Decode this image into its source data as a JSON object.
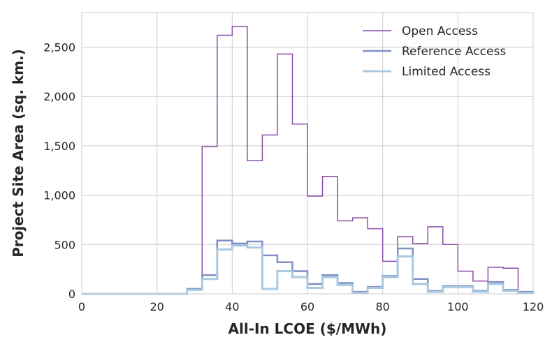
{
  "chart_data": {
    "type": "step",
    "xlabel": "All-In LCOE ($/MWh)",
    "ylabel": "Project Site Area (sq. km.)",
    "xlim": [
      0,
      120
    ],
    "ylim": [
      0,
      2850
    ],
    "xticks": [
      0,
      20,
      40,
      60,
      80,
      100,
      120
    ],
    "xtick_labels": [
      "0",
      "20",
      "40",
      "60",
      "80",
      "100",
      "120"
    ],
    "yticks": [
      0,
      500,
      1000,
      1500,
      2000,
      2500
    ],
    "ytick_labels": [
      "0",
      "500",
      "1,000",
      "1,500",
      "2,000",
      "2,500"
    ],
    "grid": true,
    "legend_position": "top-right",
    "bin_edges": [
      0,
      4,
      8,
      12,
      16,
      20,
      24,
      28,
      32,
      36,
      40,
      44,
      48,
      52,
      56,
      60,
      64,
      68,
      72,
      76,
      80,
      84,
      88,
      92,
      96,
      100,
      104,
      108,
      112,
      116,
      120
    ],
    "series": [
      {
        "name": "Open Access",
        "color": "#8b4fa8",
        "width": 1.5,
        "values": [
          0,
          0,
          0,
          0,
          0,
          0,
          0,
          40,
          1490,
          2620,
          2710,
          1350,
          1610,
          2430,
          1720,
          990,
          1190,
          740,
          770,
          660,
          330,
          580,
          510,
          680,
          500,
          230,
          130,
          270,
          260,
          10
        ]
      },
      {
        "name": "Reference Access",
        "color": "#7f8fc8",
        "width": 2.5,
        "values": [
          0,
          0,
          0,
          0,
          0,
          0,
          0,
          50,
          190,
          540,
          510,
          530,
          390,
          320,
          230,
          100,
          190,
          110,
          20,
          70,
          180,
          460,
          150,
          30,
          80,
          80,
          30,
          120,
          40,
          20
        ]
      },
      {
        "name": "Limited Access",
        "color": "#aac9e0",
        "width": 3,
        "values": [
          0,
          0,
          0,
          0,
          0,
          0,
          0,
          40,
          150,
          450,
          490,
          470,
          50,
          230,
          170,
          60,
          170,
          90,
          10,
          60,
          170,
          380,
          100,
          20,
          70,
          70,
          20,
          100,
          30,
          10
        ]
      }
    ]
  }
}
